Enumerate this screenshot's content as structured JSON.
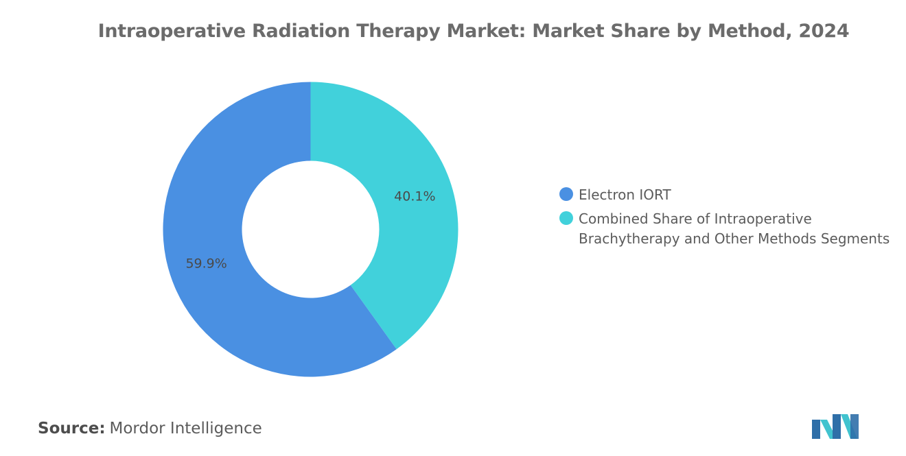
{
  "title": "Intraoperative Radiation Therapy Market: Market Share by Method, 2024",
  "chart_data": {
    "type": "pie",
    "donut": true,
    "title": "Intraoperative Radiation Therapy Market: Market Share by Method, 2024",
    "categories": [
      "Electron IORT",
      "Combined Share of Intraoperative Brachytherapy and Other Methods Segments"
    ],
    "values": [
      59.9,
      40.1
    ],
    "labels": [
      "59.9%",
      "40.1%"
    ],
    "colors": [
      "#4a90e2",
      "#41d1db"
    ],
    "legend_position": "right"
  },
  "legend": [
    {
      "label": "Electron IORT",
      "color": "#4a90e2"
    },
    {
      "label": "Combined Share of Intraoperative Brachytherapy and Other Methods Segments",
      "color": "#41d1db"
    }
  ],
  "source": {
    "key": "Source:",
    "value": "Mordor Intelligence"
  },
  "logo": {
    "icon": "mordor-intelligence-logo-icon",
    "colors": [
      "#2f6fa8",
      "#41c3cf"
    ]
  }
}
